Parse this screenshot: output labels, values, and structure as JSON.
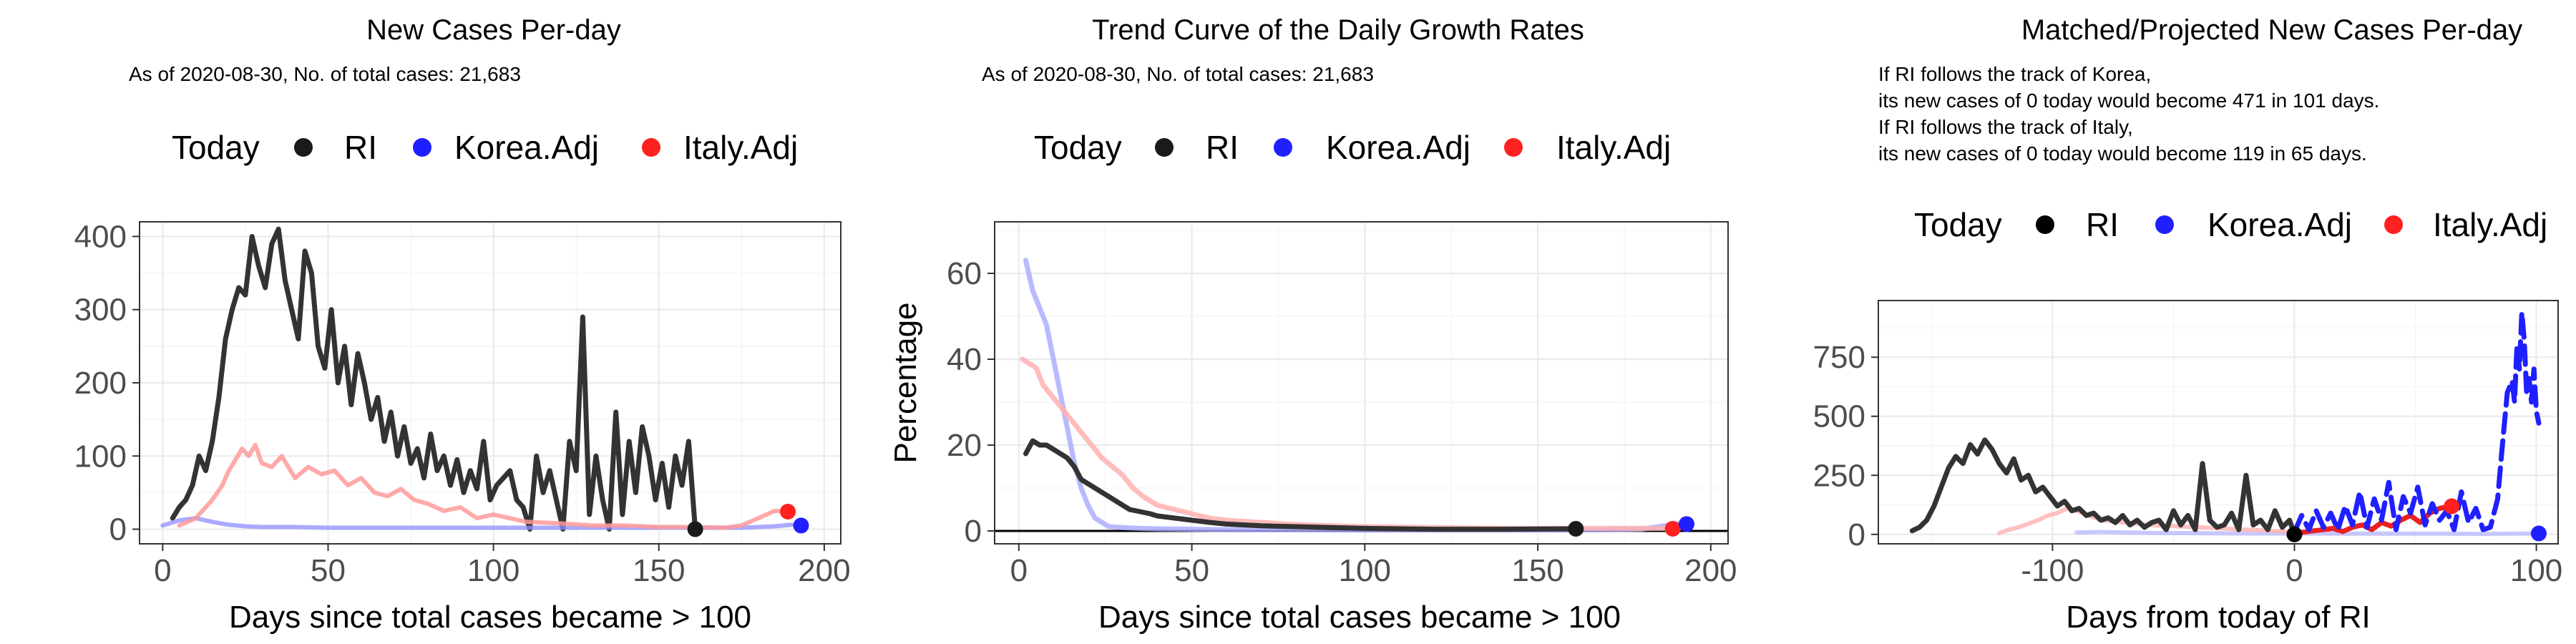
{
  "legend": {
    "title": "Today",
    "items": [
      {
        "label": "RI",
        "color": "#1a1a1a"
      },
      {
        "label": "Korea.Adj",
        "color": "#1f1fff"
      },
      {
        "label": "Italy.Adj",
        "color": "#ff2020"
      }
    ]
  },
  "charts": [
    {
      "title": "New Cases Per-day",
      "subtitle_lines": [
        "As of 2020-08-30, No. of total cases: 21,683"
      ],
      "xlabel": "Days since total cases became > 100",
      "ylabel": "",
      "xticks": [
        "0",
        "50",
        "100",
        "150",
        "200"
      ],
      "yticks": [
        "0",
        "100",
        "200",
        "300",
        "400"
      ]
    },
    {
      "title": "Trend Curve of the Daily Growth Rates",
      "subtitle_lines": [
        "As of 2020-08-30, No. of total cases: 21,683"
      ],
      "xlabel": "Days since total cases became > 100",
      "ylabel": "Percentage",
      "xticks": [
        "0",
        "50",
        "100",
        "150",
        "200"
      ],
      "yticks": [
        "0",
        "20",
        "40",
        "60"
      ]
    },
    {
      "title": "Matched/Projected New Cases Per-day",
      "subtitle_lines": [
        "If RI follows the track of Korea,",
        "its new cases of 0 today would become 471 in 101 days.",
        "If RI follows the track of Italy,",
        "its new cases of 0 today would become 119 in 65 days."
      ],
      "xlabel": "Days from today of RI",
      "ylabel": "",
      "xticks": [
        "-100",
        "0",
        "100"
      ],
      "yticks": [
        "0",
        "250",
        "500",
        "750"
      ]
    }
  ],
  "chart_data": [
    {
      "type": "line",
      "title": "New Cases Per-day",
      "xlabel": "Days since total cases became > 100",
      "xlim": [
        -7,
        205
      ],
      "ylim": [
        -20,
        420
      ],
      "series": [
        {
          "name": "RI",
          "color": "#333333",
          "width": 7,
          "opacity": 1,
          "x": [
            3,
            5,
            7,
            9,
            11,
            13,
            15,
            17,
            19,
            21,
            23,
            25,
            27,
            29,
            31,
            33,
            35,
            37,
            39,
            41,
            43,
            45,
            47,
            49,
            51,
            53,
            55,
            57,
            59,
            61,
            63,
            65,
            67,
            69,
            71,
            73,
            75,
            77,
            79,
            81,
            83,
            85,
            87,
            89,
            91,
            93,
            95,
            97,
            99,
            101,
            103,
            105,
            107,
            109,
            111,
            113,
            115,
            117,
            119,
            121,
            123,
            125,
            127,
            129,
            131,
            133,
            135,
            137,
            139,
            141,
            143,
            145,
            147,
            149,
            151,
            153,
            155,
            157,
            159,
            161
          ],
          "y": [
            15,
            30,
            40,
            60,
            100,
            80,
            120,
            180,
            260,
            300,
            330,
            320,
            400,
            360,
            330,
            390,
            410,
            340,
            300,
            260,
            380,
            350,
            250,
            220,
            300,
            200,
            250,
            170,
            240,
            200,
            150,
            180,
            120,
            160,
            100,
            140,
            90,
            110,
            70,
            130,
            80,
            100,
            60,
            95,
            50,
            80,
            55,
            120,
            40,
            60,
            70,
            80,
            40,
            30,
            0,
            100,
            50,
            80,
            40,
            0,
            120,
            80,
            290,
            20,
            100,
            40,
            0,
            160,
            20,
            120,
            50,
            140,
            100,
            40,
            90,
            30,
            100,
            60,
            120,
            0
          ]
        },
        {
          "name": "Korea.Adj",
          "color": "#8d8dff",
          "width": 6,
          "opacity": 0.75,
          "x": [
            0,
            5,
            10,
            15,
            20,
            25,
            30,
            40,
            50,
            60,
            80,
            100,
            120,
            140,
            160,
            175,
            185,
            190,
            193
          ],
          "y": [
            5,
            12,
            15,
            10,
            6,
            4,
            3,
            3,
            2,
            2,
            2,
            2,
            2,
            2,
            2,
            2,
            4,
            6,
            5
          ]
        },
        {
          "name": "Italy.Adj",
          "color": "#ff9a9a",
          "width": 6,
          "opacity": 0.85,
          "x": [
            5,
            10,
            15,
            18,
            20,
            22,
            24,
            26,
            28,
            30,
            33,
            36,
            40,
            44,
            48,
            52,
            56,
            60,
            64,
            68,
            72,
            76,
            80,
            85,
            90,
            95,
            100,
            110,
            120,
            130,
            140,
            150,
            160,
            170,
            175,
            180,
            185,
            189
          ],
          "y": [
            5,
            15,
            40,
            60,
            80,
            95,
            110,
            100,
            115,
            90,
            85,
            100,
            70,
            85,
            75,
            80,
            60,
            70,
            50,
            45,
            55,
            40,
            35,
            25,
            30,
            15,
            20,
            10,
            8,
            5,
            5,
            3,
            3,
            2,
            5,
            15,
            25,
            24
          ]
        }
      ],
      "today_points": [
        {
          "name": "RI",
          "x": 161,
          "y": 0,
          "color": "#1a1a1a"
        },
        {
          "name": "Italy.Adj",
          "x": 189,
          "y": 24,
          "color": "#ff2020"
        },
        {
          "name": "Korea.Adj",
          "x": 193,
          "y": 5,
          "color": "#1f1fff"
        }
      ],
      "yticks": [
        0,
        100,
        200,
        300,
        400
      ],
      "xticks": [
        0,
        50,
        100,
        150,
        200
      ],
      "xminor": [
        25,
        75,
        125,
        175
      ],
      "yminor": [
        50,
        150,
        250,
        350
      ],
      "hline": null,
      "grid": true
    },
    {
      "type": "line",
      "title": "Trend Curve of the Daily Growth Rates",
      "xlabel": "Days since total cases became > 100",
      "ylabel": "Percentage",
      "xlim": [
        -7,
        205
      ],
      "ylim": [
        -3,
        72
      ],
      "series": [
        {
          "name": "Korea.Adj",
          "color": "#a8a8ff",
          "width": 7,
          "opacity": 0.8,
          "x": [
            2,
            4,
            6,
            8,
            10,
            12,
            14,
            16,
            18,
            20,
            22,
            24,
            26,
            30,
            35,
            40,
            50,
            60,
            80,
            100,
            120,
            140,
            160,
            180,
            185,
            190,
            193
          ],
          "y": [
            63,
            56,
            52,
            48,
            40,
            32,
            24,
            16,
            10,
            6,
            3,
            2,
            1,
            0.8,
            0.6,
            0.5,
            0.4,
            0.3,
            0.3,
            0.2,
            0.2,
            0.2,
            0.2,
            0.4,
            1,
            1.6,
            1.6
          ]
        },
        {
          "name": "Italy.Adj",
          "color": "#ffb0b0",
          "width": 7,
          "opacity": 0.85,
          "x": [
            1,
            3,
            5,
            7,
            9,
            12,
            15,
            18,
            21,
            24,
            27,
            30,
            33,
            36,
            40,
            45,
            50,
            55,
            60,
            70,
            80,
            90,
            100,
            120,
            140,
            160,
            180,
            189
          ],
          "y": [
            40,
            39,
            38,
            34,
            32,
            29,
            26,
            23,
            20,
            17,
            15,
            13,
            10,
            8,
            6,
            5,
            4,
            3,
            2.5,
            2,
            1.5,
            1.2,
            1,
            0.8,
            0.6,
            0.6,
            0.6,
            0.6
          ]
        },
        {
          "name": "RI",
          "color": "#333333",
          "width": 7,
          "opacity": 1,
          "x": [
            2,
            4,
            6,
            8,
            10,
            12,
            14,
            16,
            18,
            20,
            22,
            24,
            26,
            28,
            30,
            32,
            35,
            38,
            40,
            45,
            50,
            55,
            60,
            70,
            80,
            100,
            120,
            140,
            161
          ],
          "y": [
            18,
            21,
            20,
            20,
            19,
            18,
            17,
            15,
            12,
            11,
            10,
            9,
            8,
            7,
            6,
            5,
            4.5,
            4,
            3.5,
            3,
            2.5,
            2,
            1.6,
            1.2,
            1,
            0.6,
            0.4,
            0.4,
            0.5
          ]
        }
      ],
      "today_points": [
        {
          "name": "RI",
          "x": 161,
          "y": 0.5,
          "color": "#1a1a1a"
        },
        {
          "name": "Italy.Adj",
          "x": 189,
          "y": 0.5,
          "color": "#ff2020"
        },
        {
          "name": "Korea.Adj",
          "x": 193,
          "y": 1.6,
          "color": "#1f1fff"
        }
      ],
      "yticks": [
        0,
        20,
        40,
        60
      ],
      "xticks": [
        0,
        50,
        100,
        150,
        200
      ],
      "xminor": [
        25,
        75,
        125,
        175
      ],
      "yminor": [
        10,
        30,
        50,
        70
      ],
      "hline": 0,
      "grid": true
    },
    {
      "type": "line",
      "title": "Matched/Projected New Cases Per-day",
      "xlabel": "Days from today of RI",
      "xlim": [
        -172,
        109
      ],
      "ylim": [
        -40,
        990
      ],
      "series": [
        {
          "name": "Korea.Adj",
          "color": "#bcbcff",
          "width": 6,
          "opacity": 0.8,
          "x": [
            -90,
            -80,
            -60,
            -40,
            -20,
            0,
            20,
            40,
            60,
            80,
            90,
            101
          ],
          "y": [
            8,
            10,
            6,
            5,
            4,
            4,
            3,
            3,
            3,
            2,
            3,
            4
          ]
        },
        {
          "name": "Italy.Adj",
          "color": "#ffb0b0",
          "width": 6,
          "opacity": 0.8,
          "x": [
            -122,
            -118,
            -114,
            -110,
            -106,
            -102,
            -98,
            -94,
            -90,
            -85,
            -80,
            -70,
            -60,
            -50,
            -40,
            -30,
            -20,
            -10,
            0
          ],
          "y": [
            5,
            20,
            30,
            45,
            60,
            80,
            90,
            110,
            100,
            80,
            60,
            50,
            40,
            35,
            30,
            25,
            20,
            15,
            10
          ]
        },
        {
          "name": "RI",
          "color": "#333333",
          "width": 7,
          "opacity": 1,
          "x": [
            -158,
            -155,
            -152,
            -149,
            -146,
            -143,
            -140,
            -137,
            -134,
            -131,
            -128,
            -125,
            -122,
            -119,
            -116,
            -113,
            -110,
            -107,
            -104,
            -101,
            -98,
            -95,
            -92,
            -89,
            -86,
            -83,
            -80,
            -77,
            -74,
            -71,
            -68,
            -65,
            -62,
            -59,
            -56,
            -53,
            -50,
            -47,
            -44,
            -41,
            -38,
            -35,
            -32,
            -29,
            -26,
            -23,
            -20,
            -17,
            -14,
            -11,
            -8,
            -5,
            -2,
            0
          ],
          "y": [
            15,
            30,
            60,
            120,
            200,
            280,
            330,
            300,
            380,
            340,
            400,
            360,
            300,
            260,
            320,
            230,
            250,
            180,
            200,
            160,
            120,
            140,
            100,
            110,
            80,
            90,
            60,
            70,
            50,
            80,
            40,
            60,
            30,
            50,
            60,
            20,
            100,
            40,
            80,
            20,
            300,
            60,
            30,
            40,
            90,
            20,
            250,
            40,
            60,
            20,
            100,
            30,
            60,
            0
          ]
        },
        {
          "name": "Italy.Adj",
          "color": "#e82020",
          "width": 7,
          "opacity": 1,
          "x": [
            0,
            4,
            8,
            12,
            16,
            20,
            24,
            28,
            32,
            36,
            40,
            44,
            48,
            52,
            56,
            60,
            65
          ],
          "y": [
            5,
            10,
            15,
            20,
            25,
            12,
            30,
            40,
            20,
            50,
            35,
            60,
            80,
            50,
            90,
            110,
            119
          ]
        },
        {
          "name": "Korea.Adj",
          "color": "#1f1fff",
          "width": 7,
          "opacity": 1,
          "dash": "26 12",
          "x": [
            0,
            3,
            6,
            9,
            12,
            15,
            18,
            21,
            24,
            27,
            30,
            33,
            36,
            39,
            42,
            45,
            48,
            51,
            54,
            57,
            60,
            63,
            66,
            69,
            72,
            75,
            78,
            81,
            84,
            86,
            88,
            90,
            91,
            92,
            93,
            94,
            95,
            96,
            97,
            98,
            99,
            100,
            101
          ],
          "y": [
            10,
            80,
            20,
            100,
            30,
            90,
            20,
            120,
            40,
            180,
            30,
            150,
            60,
            220,
            20,
            160,
            90,
            200,
            40,
            130,
            60,
            100,
            20,
            180,
            50,
            110,
            20,
            30,
            150,
            380,
            600,
            650,
            560,
            800,
            700,
            940,
            820,
            600,
            660,
            560,
            700,
            520,
            471
          ]
        }
      ],
      "today_points": [
        {
          "name": "RI",
          "x": 0,
          "y": 0,
          "color": "#000000"
        },
        {
          "name": "Italy.Adj",
          "x": 65,
          "y": 119,
          "color": "#ff2020"
        },
        {
          "name": "Korea.Adj",
          "x": 101,
          "y": 4,
          "color": "#1f1fff"
        }
      ],
      "yticks": [
        0,
        250,
        500,
        750
      ],
      "xticks": [
        -100,
        0,
        100
      ],
      "xminor": [
        -150,
        -50,
        50
      ],
      "yminor": [
        125,
        375,
        625,
        875
      ],
      "hline": null,
      "grid": true
    }
  ]
}
